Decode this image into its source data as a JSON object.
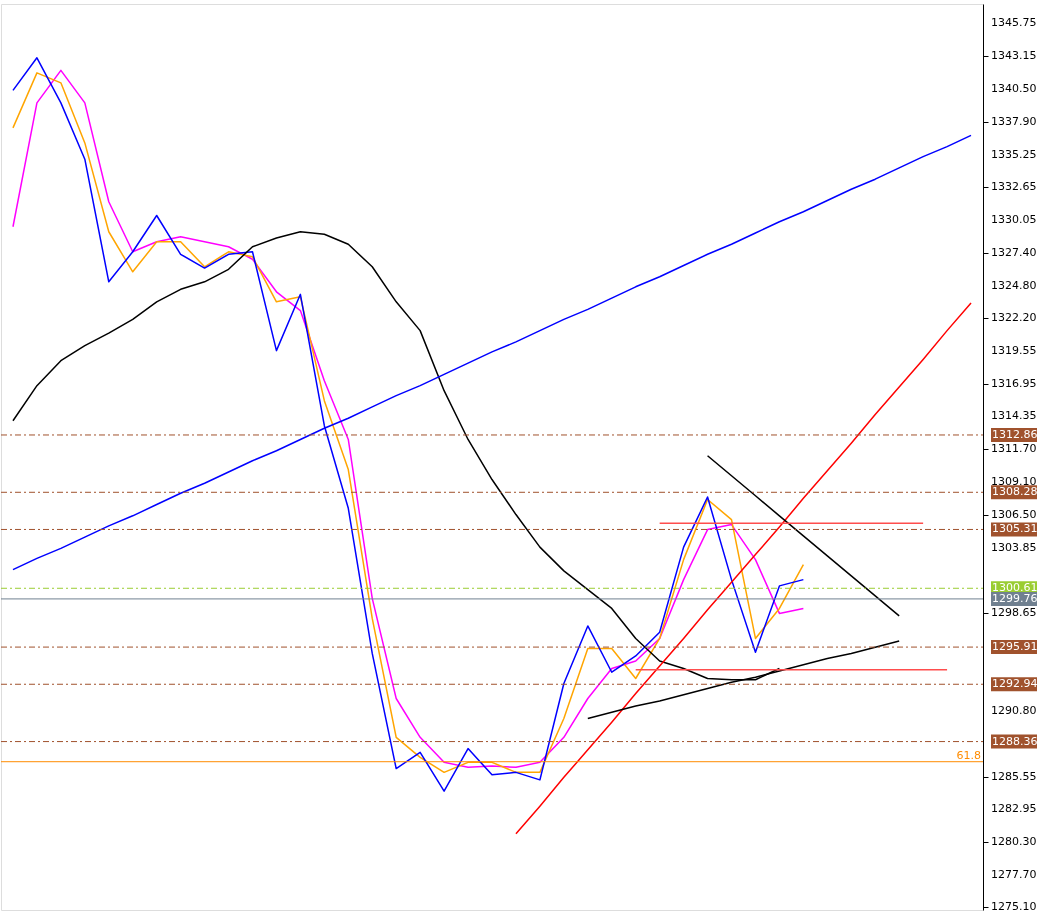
{
  "chart_data": {
    "type": "line",
    "categories": [
      null,
      null,
      null,
      null,
      null,
      null,
      null,
      null,
      null,
      null,
      null,
      null,
      null,
      null,
      null,
      null,
      null,
      null,
      null,
      null,
      null,
      null,
      null,
      null,
      null,
      null,
      null,
      null,
      null,
      null,
      null,
      null,
      null,
      null,
      null,
      null,
      null,
      null,
      null,
      null,
      null
    ],
    "series": [
      {
        "color": "#ff00ff",
        "values": [
          1329.5,
          1339.4,
          1342.0,
          1339.4,
          1331.5,
          1327.5,
          1328.3,
          1328.7,
          1328.3,
          1327.9,
          1326.9,
          1324.3,
          1322.8,
          1317.2,
          1312.5,
          1299.8,
          1291.8,
          1288.7,
          1286.7,
          1286.3,
          1286.4,
          1286.3,
          1286.7,
          1288.7,
          1291.8,
          1294.2,
          1294.8,
          1296.6,
          1301.3,
          1305.3,
          1305.7,
          1302.9,
          1298.6,
          1299.0,
          null,
          null,
          null,
          null,
          null,
          null,
          null
        ]
      },
      {
        "color": "#ffa500",
        "values": [
          1337.4,
          1341.8,
          1341.0,
          1336.2,
          1329.1,
          1325.9,
          1328.3,
          1328.3,
          1326.3,
          1327.5,
          1327.1,
          1323.5,
          1323.9,
          1315.6,
          1310.1,
          1298.2,
          1288.7,
          1287.1,
          1285.9,
          1286.7,
          1286.7,
          1285.9,
          1285.9,
          1290.2,
          1295.8,
          1295.8,
          1293.4,
          1296.6,
          1302.9,
          1307.7,
          1306.1,
          1296.6,
          1299.0,
          1302.5,
          null,
          null,
          null,
          null,
          null,
          null,
          null
        ]
      },
      {
        "color": "#0000ff",
        "values": [
          1340.4,
          1343.0,
          1339.4,
          1334.9,
          1325.1,
          1327.5,
          1330.4,
          1327.3,
          1326.2,
          1327.3,
          1327.5,
          1319.6,
          1324.1,
          1313.6,
          1307.0,
          1295.4,
          1286.2,
          1287.5,
          1284.4,
          1287.8,
          1285.7,
          1285.9,
          1285.3,
          1293.0,
          1297.6,
          1293.9,
          1295.2,
          1297.1,
          1303.9,
          1307.9,
          1301.3,
          1295.5,
          1300.8,
          1301.3,
          null,
          null,
          null,
          null,
          null,
          null,
          null
        ]
      },
      {
        "color": "#000000",
        "values": [
          1314.0,
          1316.8,
          1318.8,
          1320.0,
          1321.0,
          1322.1,
          1323.5,
          1324.5,
          1325.1,
          1326.1,
          1327.9,
          1328.6,
          1329.1,
          1328.9,
          1328.1,
          1326.3,
          1323.5,
          1321.2,
          1316.4,
          1312.5,
          1309.3,
          1306.5,
          1303.9,
          1302.0,
          1300.5,
          1299.0,
          1296.6,
          1294.8,
          1294.2,
          1293.4,
          1293.3,
          1293.3,
          1294.2,
          null,
          null,
          null,
          null,
          null,
          null,
          null,
          null
        ]
      },
      {
        "color": "#0000ff",
        "values": [
          1302.1,
          1303.0,
          1303.8,
          1304.7,
          1305.6,
          1306.4,
          1307.3,
          1308.2,
          1309.0,
          1309.9,
          1310.8,
          1311.6,
          1312.5,
          1313.4,
          1314.2,
          1315.1,
          1316.0,
          1316.8,
          1317.7,
          1318.6,
          1319.5,
          1320.3,
          1321.2,
          1322.1,
          1322.9,
          1323.8,
          1324.7,
          1325.5,
          1326.4,
          1327.3,
          1328.1,
          1329.0,
          1329.9,
          1330.7,
          1331.6,
          1332.5,
          1333.3,
          1334.2,
          1335.1,
          1335.9,
          1336.8
        ]
      },
      {
        "color": "#ff0000",
        "values": [
          null,
          null,
          null,
          null,
          null,
          null,
          null,
          null,
          null,
          null,
          null,
          null,
          null,
          null,
          null,
          null,
          null,
          null,
          null,
          null,
          null,
          1281.0,
          1283.2,
          1285.5,
          1287.7,
          1289.9,
          1292.2,
          1294.4,
          1296.6,
          1298.9,
          1301.1,
          1303.3,
          1305.5,
          1307.8,
          1310.0,
          1312.2,
          1314.5,
          1316.7,
          1318.9,
          1321.2,
          1323.4
        ]
      },
      {
        "color": "#000000",
        "values": [
          null,
          null,
          null,
          null,
          null,
          null,
          null,
          null,
          null,
          null,
          null,
          null,
          null,
          null,
          null,
          null,
          null,
          null,
          null,
          null,
          null,
          null,
          null,
          null,
          null,
          null,
          null,
          null,
          null,
          1311.2,
          1309.6,
          1308.0,
          1306.4,
          1304.8,
          1303.2,
          1301.6,
          1300.0,
          1298.4,
          null,
          null,
          null
        ]
      },
      {
        "color": "#000000",
        "values": [
          null,
          null,
          null,
          null,
          null,
          null,
          null,
          null,
          null,
          null,
          null,
          null,
          null,
          null,
          null,
          null,
          null,
          null,
          null,
          null,
          null,
          null,
          null,
          null,
          1290.2,
          1290.7,
          1291.2,
          1291.6,
          1292.1,
          1292.6,
          1293.1,
          1293.5,
          1294.0,
          1294.5,
          1295.0,
          1295.4,
          1295.9,
          1296.4,
          null,
          null,
          null
        ]
      },
      {
        "color": "#ff4d4d",
        "values": [
          null,
          null,
          null,
          null,
          null,
          null,
          null,
          null,
          null,
          null,
          null,
          null,
          null,
          null,
          null,
          null,
          null,
          null,
          null,
          null,
          null,
          null,
          null,
          null,
          null,
          null,
          null,
          1305.8,
          1305.8,
          1305.8,
          1305.8,
          1305.8,
          1305.8,
          1305.8,
          1305.8,
          1305.8,
          1305.8,
          1305.8,
          1305.8,
          null,
          null
        ]
      },
      {
        "color": "#ff4d4d",
        "values": [
          null,
          null,
          null,
          null,
          null,
          null,
          null,
          null,
          null,
          null,
          null,
          null,
          null,
          null,
          null,
          null,
          null,
          null,
          null,
          null,
          null,
          null,
          null,
          null,
          null,
          null,
          1294.1,
          1294.1,
          1294.1,
          1294.1,
          1294.1,
          1294.1,
          1294.1,
          1294.1,
          1294.1,
          1294.1,
          1294.1,
          1294.1,
          1294.1,
          1294.1,
          null
        ]
      }
    ],
    "ylim": [
      1274.9,
      1347.3
    ],
    "yticks": [
      {
        "value": 1275.1,
        "label": "1275.10"
      },
      {
        "value": 1277.7,
        "label": "1277.70"
      },
      {
        "value": 1280.3,
        "label": "1280.30"
      },
      1282.95,
      1285.55,
      {
        "value": 1290.8,
        "label": "1290.80"
      },
      1298.65,
      1303.85,
      {
        "value": 1306.5,
        "label": "1306.50"
      },
      {
        "value": 1309.1,
        "label": "1309.10"
      },
      {
        "value": 1311.7,
        "label": "1311.70"
      },
      1314.35,
      1316.95,
      1319.55,
      {
        "value": 1322.2,
        "label": "1322.20"
      },
      {
        "value": 1324.8,
        "label": "1324.80"
      },
      {
        "value": 1327.4,
        "label": "1327.40"
      },
      1330.05,
      1332.65,
      1335.25,
      {
        "value": 1337.9,
        "label": "1337.90"
      },
      {
        "value": 1340.5,
        "label": "1340.50"
      },
      1343.15,
      1345.75
    ],
    "ref_lines": [
      {
        "axis": "y",
        "value": 1312.86,
        "label": "1312.86",
        "color": "#a0522d",
        "line_style": "dashed"
      },
      {
        "axis": "y",
        "value": 1308.28,
        "label": "1308.28",
        "color": "#a0522d",
        "line_style": "dashed"
      },
      {
        "axis": "y",
        "value": 1305.31,
        "label": "1305.31",
        "color": "#a0522d",
        "line_style": "dashed"
      },
      {
        "axis": "y",
        "value": 1300.61,
        "label": "1300.61",
        "color": "#9acd32",
        "line_style": "dashed"
      },
      {
        "axis": "y",
        "value": 1299.76,
        "label": "1299.76",
        "color": "#708090",
        "line_style": "solid"
      },
      {
        "axis": "y",
        "value": 1295.91,
        "label": "1295.91",
        "color": "#a0522d",
        "line_style": "dashed"
      },
      {
        "axis": "y",
        "value": 1292.94,
        "label": "1292.94",
        "color": "#a0522d",
        "line_style": "dashed"
      },
      {
        "axis": "y",
        "value": 1288.36,
        "label": "1288.36",
        "color": "#a0522d",
        "line_style": "dashed"
      },
      {
        "axis": "y",
        "value": 1286.75,
        "color": "#ff8c00",
        "line_style": "solid"
      }
    ],
    "annotations": [
      {
        "text": "61.8",
        "y": 1286.75
      }
    ],
    "tick_labels": "y",
    "grid": false,
    "legend": false,
    "marker": "none",
    "line_style": "solid"
  }
}
